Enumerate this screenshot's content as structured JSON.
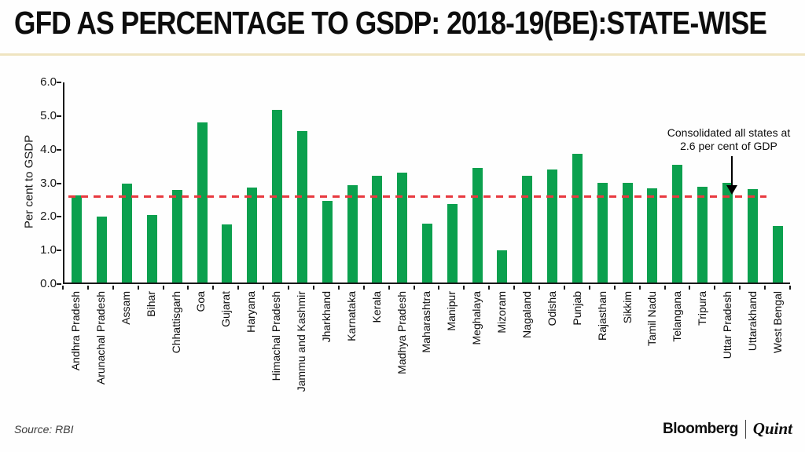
{
  "header": {
    "title": "GFD AS PERCENTAGE TO GSDP: 2018-19(BE):STATE-WISE"
  },
  "chart_data": {
    "type": "bar",
    "title": "GFD AS PERCENTAGE TO GSDP: 2018-19(BE):STATE-WISE",
    "xlabel": "",
    "ylabel": "Per cent to GSDP",
    "ylim": [
      0,
      6
    ],
    "yticks": [
      "0.0",
      "1.0",
      "2.0",
      "3.0",
      "4.0",
      "5.0",
      "6.0"
    ],
    "grid": "off",
    "bar_color": "#0ba04e",
    "categories": [
      "Andhra Pradesh",
      "Arunachal Pradesh",
      "Assam",
      "Bihar",
      "Chhattisgarh",
      "Goa",
      "Gujarat",
      "Haryana",
      "Himachal Pradesh",
      "Jammu and Kashmir",
      "Jharkhand",
      "Karnataka",
      "Kerala",
      "Madhya Pradesh",
      "Maharashtra",
      "Manipur",
      "Meghalaya",
      "Mizoram",
      "Nagaland",
      "Odisha",
      "Punjab",
      "Rajasthan",
      "Sikkim",
      "Tamil Nadu",
      "Telangana",
      "Tripura",
      "Uttar Pradesh",
      "Uttarakhand",
      "West Bengal"
    ],
    "values": [
      2.61,
      1.98,
      2.97,
      2.02,
      2.77,
      4.79,
      1.73,
      2.85,
      5.17,
      4.55,
      2.44,
      2.92,
      3.2,
      3.29,
      1.77,
      2.35,
      3.43,
      0.96,
      3.21,
      3.4,
      3.85,
      3.0,
      3.0,
      2.82,
      3.53,
      2.86,
      2.99,
      2.79,
      1.69
    ],
    "reference_line": {
      "value": 2.6,
      "color": "#e8393f",
      "style": "dashed"
    },
    "annotation": {
      "line1": "Consolidated all states at",
      "line2": "2.6 per cent of GDP"
    }
  },
  "footer": {
    "source": "Source: RBI",
    "brand_bloomberg": "Bloomberg",
    "brand_quint": "Quint"
  }
}
